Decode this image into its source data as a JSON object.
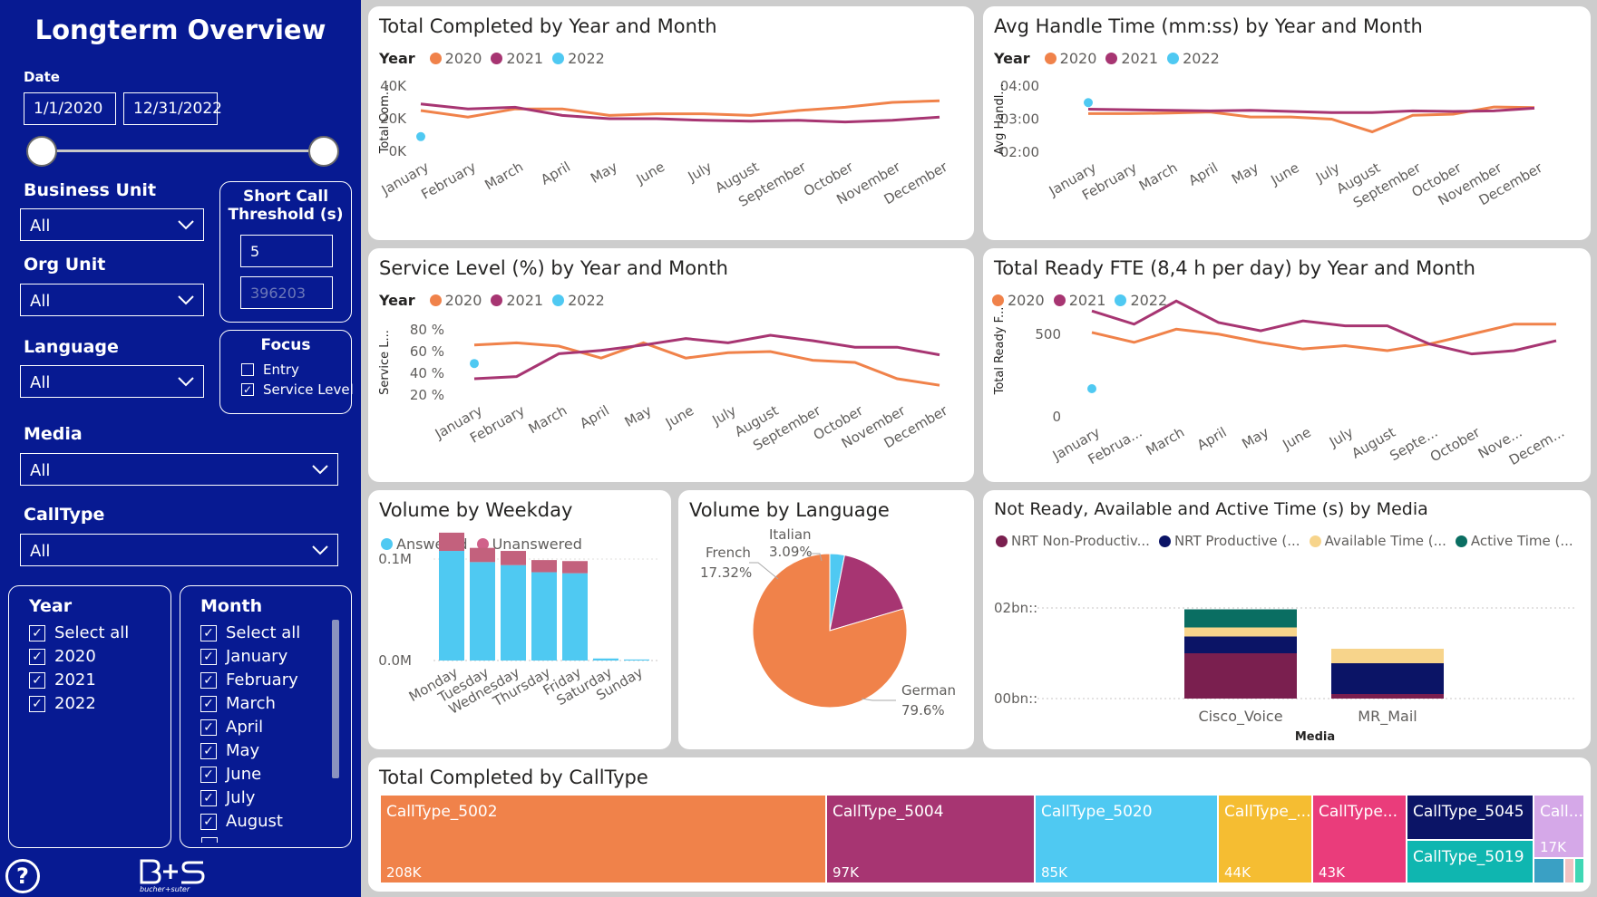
{
  "filters": {
    "title": "Longterm Overview",
    "date_label": "Date",
    "date_from": "1/1/2020",
    "date_to": "12/31/2022",
    "business_unit": {
      "label": "Business Unit",
      "value": "All"
    },
    "org_unit": {
      "label": "Org Unit",
      "value": "All"
    },
    "language": {
      "label": "Language",
      "value": "All"
    },
    "media": {
      "label": "Media",
      "value": "All"
    },
    "calltype": {
      "label": "CallType",
      "value": "All"
    },
    "short_call": {
      "title": "Short Call Threshold (s)",
      "value": "5",
      "placeholder": "396203"
    },
    "focus": {
      "title": "Focus",
      "entry": "Entry",
      "service_level": "Service Level"
    },
    "year": {
      "title": "Year",
      "items": [
        "Select all",
        "2020",
        "2021",
        "2022"
      ]
    },
    "month": {
      "title": "Month",
      "items": [
        "Select all",
        "January",
        "February",
        "March",
        "April",
        "May",
        "June",
        "July",
        "August"
      ]
    },
    "logo_text": "bucher+suter"
  },
  "colors": {
    "y2020": "#f0824a",
    "y2021": "#a73572",
    "y2022": "#4fc9f2",
    "navy": "#071a92"
  },
  "charts": {
    "total_completed": {
      "title": "Total Completed by Year and Month",
      "ylabel": "Total Com...",
      "yticks": [
        "40K",
        "20K",
        "0K"
      ]
    },
    "aht": {
      "title": "Avg Handle Time (mm:ss) by Year and Month",
      "ylabel": "Avg Handl...",
      "yticks": [
        "04:00",
        "03:00",
        "02:00"
      ]
    },
    "service_level": {
      "title": "Service Level (%) by Year and Month",
      "ylabel": "Service L...",
      "yticks": [
        "80 %",
        "60 %",
        "40 %",
        "20 %"
      ]
    },
    "ready_fte": {
      "title": "Total Ready FTE (8,4 h per day) by Year and Month",
      "ylabel": "Total Ready F...",
      "yticks": [
        "500",
        "0"
      ],
      "xlabels": [
        "January",
        "Februa...",
        "March",
        "April",
        "May",
        "June",
        "July",
        "August",
        "Septe...",
        "October",
        "Nove...",
        "Decem..."
      ]
    },
    "weekday": {
      "title": "Volume by Weekday",
      "legend": [
        "Answered",
        "Unanswered"
      ],
      "yticks": [
        "0.1M",
        "0.0M"
      ]
    },
    "language": {
      "title": "Volume by Language",
      "labels": {
        "italian": "Italian",
        "italian_pct": "3.09%",
        "french": "French",
        "french_pct": "17.32%",
        "german": "German",
        "german_pct": "79.6%"
      }
    },
    "media": {
      "title": "Not Ready, Available and Active Time (s) by Media",
      "legend": [
        "NRT Non-Productiv...",
        "NRT Productive (...",
        "Available Time (...",
        "Active Time (..."
      ],
      "yticks": [
        "02bn::",
        "00bn::"
      ],
      "xlabel": "Media",
      "categories": [
        "Cisco_Voice",
        "MR_Mail"
      ]
    },
    "calltype": {
      "title": "Total Completed by CallType"
    }
  },
  "legend_year_label": "Year",
  "legend_years": [
    "2020",
    "2021",
    "2022"
  ],
  "months": [
    "January",
    "February",
    "March",
    "April",
    "May",
    "June",
    "July",
    "August",
    "September",
    "October",
    "November",
    "December"
  ],
  "chart_data": [
    {
      "type": "line",
      "title": "Total Completed by Year and Month",
      "categories": [
        "January",
        "February",
        "March",
        "April",
        "May",
        "June",
        "July",
        "August",
        "September",
        "October",
        "November",
        "December"
      ],
      "ylim": [
        0,
        40000
      ],
      "series": [
        {
          "name": "2020",
          "values": [
            25000,
            21000,
            26000,
            26000,
            22000,
            23000,
            23000,
            22000,
            25000,
            27000,
            30000,
            31000
          ]
        },
        {
          "name": "2021",
          "values": [
            29000,
            26000,
            27000,
            22000,
            20000,
            20000,
            19000,
            18500,
            19000,
            18000,
            19000,
            21000
          ]
        },
        {
          "name": "2022",
          "values": [
            9000,
            null,
            null,
            null,
            null,
            null,
            null,
            null,
            null,
            null,
            null,
            null
          ]
        }
      ]
    },
    {
      "type": "line",
      "title": "Avg Handle Time (mm:ss) by Year and Month",
      "categories": [
        "January",
        "February",
        "March",
        "April",
        "May",
        "June",
        "July",
        "August",
        "September",
        "October",
        "November",
        "December"
      ],
      "ylim": [
        120,
        240
      ],
      "series": [
        {
          "name": "2020",
          "values": [
            190,
            190,
            191,
            193,
            184,
            184,
            180,
            157,
            187,
            189,
            202,
            201
          ]
        },
        {
          "name": "2021",
          "values": [
            198,
            197,
            196,
            195,
            196,
            194,
            192,
            192,
            195,
            194,
            195,
            200
          ]
        },
        {
          "name": "2022",
          "values": [
            210,
            null,
            null,
            null,
            null,
            null,
            null,
            null,
            null,
            null,
            null,
            null
          ]
        }
      ]
    },
    {
      "type": "line",
      "title": "Service Level (%) by Year and Month",
      "categories": [
        "January",
        "February",
        "March",
        "April",
        "May",
        "June",
        "July",
        "August",
        "September",
        "October",
        "November",
        "December"
      ],
      "ylim": [
        20,
        80
      ],
      "series": [
        {
          "name": "2020",
          "values": [
            66,
            68,
            65,
            54,
            68,
            54,
            59,
            60,
            52,
            50,
            35,
            29
          ]
        },
        {
          "name": "2021",
          "values": [
            35,
            37,
            58,
            61,
            66,
            72,
            68,
            75,
            70,
            64,
            64,
            57
          ]
        },
        {
          "name": "2022",
          "values": [
            49,
            null,
            null,
            null,
            null,
            null,
            null,
            null,
            null,
            null,
            null,
            null
          ]
        }
      ]
    },
    {
      "type": "line",
      "title": "Total Ready FTE (8,4 h per day) by Year and Month",
      "categories": [
        "January",
        "February",
        "March",
        "April",
        "May",
        "June",
        "July",
        "August",
        "September",
        "October",
        "November",
        "December"
      ],
      "ylim": [
        0,
        800
      ],
      "series": [
        {
          "name": "2020",
          "values": [
            510,
            450,
            530,
            500,
            450,
            410,
            430,
            400,
            440,
            500,
            560,
            560
          ]
        },
        {
          "name": "2021",
          "values": [
            640,
            560,
            700,
            570,
            520,
            580,
            550,
            550,
            440,
            380,
            400,
            460
          ]
        },
        {
          "name": "2022",
          "values": [
            170,
            null,
            null,
            null,
            null,
            null,
            null,
            null,
            null,
            null,
            null,
            null
          ]
        }
      ]
    },
    {
      "type": "bar",
      "title": "Volume by Weekday",
      "categories": [
        "Monday",
        "Tuesday",
        "Wednesday",
        "Thursday",
        "Friday",
        "Saturday",
        "Sunday"
      ],
      "ylim": [
        0,
        0.15
      ],
      "series": [
        {
          "name": "Answered",
          "values": [
            0.108,
            0.097,
            0.094,
            0.087,
            0.086,
            0.002,
            0.001
          ]
        },
        {
          "name": "Unanswered",
          "values": [
            0.018,
            0.014,
            0.014,
            0.012,
            0.012,
            0.0,
            0.0
          ]
        }
      ]
    },
    {
      "type": "pie",
      "title": "Volume by Language",
      "categories": [
        "German",
        "French",
        "Italian"
      ],
      "values": [
        79.6,
        17.32,
        3.09
      ]
    },
    {
      "type": "bar",
      "title": "Not Ready, Available and Active Time (s) by Media",
      "categories": [
        "Cisco_Voice",
        "MR_Mail"
      ],
      "series": [
        {
          "name": "NRT Non-Productive",
          "values": [
            1.0,
            0.1
          ]
        },
        {
          "name": "NRT Productive",
          "values": [
            0.37,
            0.68
          ]
        },
        {
          "name": "Available Time",
          "values": [
            0.2,
            0.32
          ]
        },
        {
          "name": "Active Time",
          "values": [
            0.4,
            0.0
          ]
        }
      ]
    },
    {
      "type": "treemap",
      "title": "Total Completed by CallType",
      "categories": [
        "CallType_5002",
        "CallType_5004",
        "CallType_5020",
        "CallType_...",
        "CallType...",
        "CallType_5045",
        "CallType_5019",
        "Call..."
      ],
      "values": [
        208,
        97,
        85,
        44,
        43,
        null,
        null,
        17
      ],
      "value_labels": [
        "208K",
        "97K",
        "85K",
        "44K",
        "43K",
        "",
        "",
        "17K"
      ]
    }
  ]
}
